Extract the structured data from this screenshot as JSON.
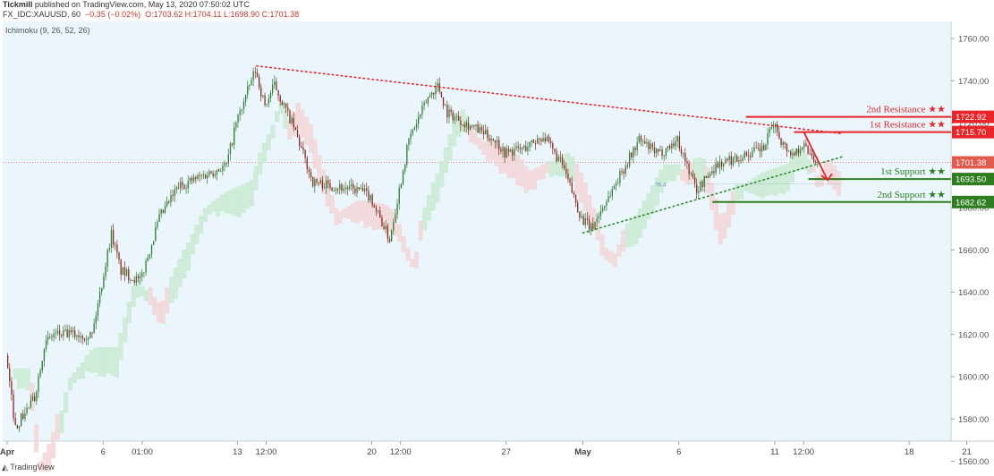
{
  "header": {
    "publisher": "Tickmill",
    "published_text": "published on TradingView.com, May 13, 2020 07:50:02 UTC",
    "symbol_line": "FX_IDC:XAUUSD, 60",
    "change": "−0.35 (−0.02%)",
    "ohlc": "O:1703.62 H:1704.11 L:1698.90 C:1701.38",
    "indicator": "Ichimoku (9, 26, 52, 26)"
  },
  "footer": {
    "brand": "TradingView"
  },
  "colors": {
    "background": "#eaf6fc",
    "resistance": "#e8262a",
    "support": "#2e7d1f",
    "price_tag": "#e05a4e",
    "candle_up": "#2e7d32",
    "candle_down": "#8b2a1e",
    "cloud_green": "#c8ead0",
    "cloud_red": "#f4d4d4",
    "trend_red": "#e8262a",
    "trend_green": "#2e8b2e"
  },
  "chart_data": {
    "type": "candlestick",
    "title": "",
    "xlabel": "",
    "ylabel": "",
    "ylim": [
      1552,
      1768
    ],
    "y_ticks": [
      "1760.00",
      "1740.00",
      "1720.00",
      "1700.00",
      "1680.00",
      "1660.00",
      "1640.00",
      "1620.00",
      "1600.00",
      "1580.00",
      "1560.00"
    ],
    "x_ticks": [
      "Apr",
      "6",
      "01:00",
      "13",
      "12:00",
      "20",
      "12:00",
      "27",
      "May",
      "6",
      "11",
      "12:00",
      "18",
      "21"
    ],
    "bold_x_ticks": [
      "Apr",
      "May"
    ],
    "last_price": 1701.38,
    "price_path": [
      [
        "Apr 1 00:00",
        1610
      ],
      [
        "Apr 1 12:00",
        1576
      ],
      [
        "Apr 2 12:00",
        1590
      ],
      [
        "Apr 3 00:00",
        1615
      ],
      [
        "Apr 3 12:00",
        1620
      ],
      [
        "Apr 5 12:00",
        1620
      ],
      [
        "Apr 6 12:00",
        1668
      ],
      [
        "Apr 7 00:00",
        1650
      ],
      [
        "Apr 8 00:00",
        1645
      ],
      [
        "Apr 9 00:00",
        1675
      ],
      [
        "Apr 10 00:00",
        1690
      ],
      [
        "Apr 12 12:00",
        1700
      ],
      [
        "Apr 13 00:00",
        1720
      ],
      [
        "Apr 14 00:00",
        1745
      ],
      [
        "Apr 14 12:00",
        1728
      ],
      [
        "Apr 15 00:00",
        1738
      ],
      [
        "Apr 16 00:00",
        1718
      ],
      [
        "Apr 17 00:00",
        1692
      ],
      [
        "Apr 19 12:00",
        1688
      ],
      [
        "Apr 20 00:00",
        1685
      ],
      [
        "Apr 20 12:00",
        1675
      ],
      [
        "Apr 21 00:00",
        1665
      ],
      [
        "Apr 22 00:00",
        1712
      ],
      [
        "Apr 23 00:00",
        1732
      ],
      [
        "Apr 23 12:00",
        1738
      ],
      [
        "Apr 24 00:00",
        1725
      ],
      [
        "Apr 26 12:00",
        1712
      ],
      [
        "Apr 27 00:00",
        1706
      ],
      [
        "Apr 28 00:00",
        1708
      ],
      [
        "Apr 29 00:00",
        1714
      ],
      [
        "Apr 30 00:00",
        1700
      ],
      [
        "May 1 00:00",
        1675
      ],
      [
        "May 1 12:00",
        1670
      ],
      [
        "May 4 00:00",
        1712
      ],
      [
        "May 5 00:00",
        1705
      ],
      [
        "May 6 00:00",
        1712
      ],
      [
        "May 7 00:00",
        1688
      ],
      [
        "May 8 00:00",
        1700
      ],
      [
        "May 10 12:00",
        1708
      ],
      [
        "May 11 00:00",
        1720
      ],
      [
        "May 11 12:00",
        1710
      ],
      [
        "May 12 00:00",
        1705
      ],
      [
        "May 12 12:00",
        1710
      ],
      [
        "May 13 00:00",
        1705
      ],
      [
        "May 13 07:00",
        1701.38
      ]
    ],
    "horizontal_levels": [
      {
        "label": "2nd Resistance ★★",
        "value": 1722.92,
        "tag": "1722.92",
        "color": "#e8262a"
      },
      {
        "label": "1st Resistance ★★",
        "value": 1715.7,
        "tag": "1715.70",
        "color": "#e8262a"
      },
      {
        "label": "1st Support ★★",
        "value": 1693.5,
        "tag": "1693.50",
        "color": "#2e7d1f"
      },
      {
        "label": "2nd Support ★★",
        "value": 1682.62,
        "tag": "1682.62",
        "color": "#2e7d1f"
      }
    ],
    "last_price_tag": "1701.38",
    "fib_label": "76.4",
    "trendlines": [
      {
        "name": "upper",
        "from": [
          "Apr 14 00:00",
          1747
        ],
        "to": [
          "May 14 12:00",
          1715
        ],
        "color": "#e8262a",
        "style": "dotted"
      },
      {
        "name": "lower",
        "from": [
          "May 1 00:00",
          1668
        ],
        "to": [
          "May 14 12:00",
          1704
        ],
        "color": "#2e8b2e",
        "style": "dotted"
      }
    ],
    "projection_arrow": {
      "from": [
        "May 12 12:00",
        1716
      ],
      "to": [
        "May 13 18:00",
        1693
      ],
      "color": "#e8262a"
    }
  }
}
